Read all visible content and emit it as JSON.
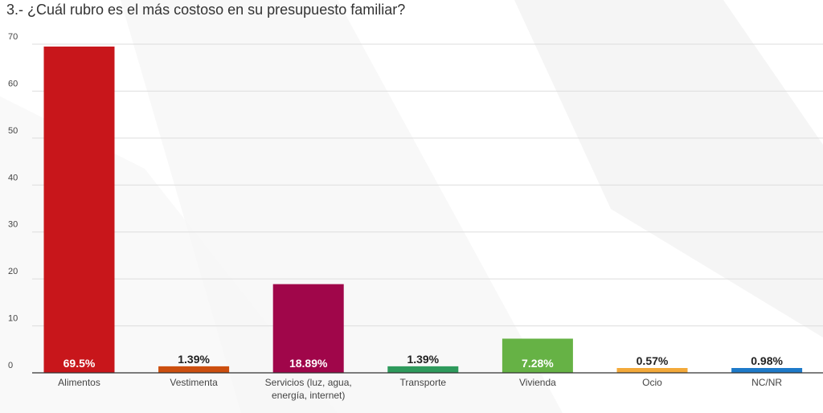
{
  "chart_data": {
    "type": "bar",
    "title": "3.- ¿Cuál rubro es el más costoso en su presupuesto familiar?",
    "xlabel": "",
    "ylabel": "",
    "ylim": [
      0,
      70
    ],
    "yticks": [
      "0",
      "10",
      "20",
      "30",
      "40",
      "50",
      "60",
      "70"
    ],
    "grid": true,
    "legend": "none",
    "categories": [
      [
        "Alimentos"
      ],
      [
        "Vestimenta"
      ],
      [
        "Servicios (luz, agua,",
        "energía, internet)"
      ],
      [
        "Transporte"
      ],
      [
        "Vivienda"
      ],
      [
        "Ocio"
      ],
      [
        "NC/NR"
      ]
    ],
    "values": [
      69.5,
      1.39,
      18.89,
      1.39,
      7.28,
      0.57,
      0.98
    ],
    "data_labels": [
      "69.5%",
      "1.39%",
      "18.89%",
      "1.39%",
      "7.28%",
      "0.57%",
      "0.98%"
    ],
    "colors": [
      "#c8161b",
      "#cc4f0f",
      "#a0064a",
      "#2e9a5c",
      "#66b245",
      "#f3a93a",
      "#1e7ac9"
    ]
  }
}
